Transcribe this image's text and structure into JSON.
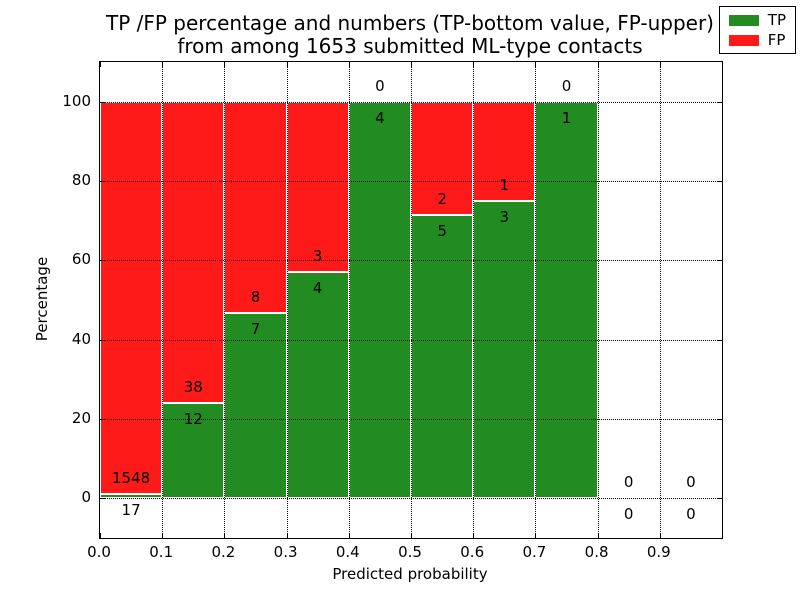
{
  "figure": {
    "title_line1": "TP /FP percentage and numbers (TP-bottom value, FP-upper)",
    "title_line2": "from among 1653 submitted ML-type contacts"
  },
  "chart_data": {
    "type": "bar",
    "stacked": true,
    "title": "TP /FP percentage and numbers (TP-bottom value, FP-upper) from among 1653 submitted ML-type contacts",
    "xlabel": "Predicted probability",
    "ylabel": "Percentage",
    "xlim": [
      0.0,
      1.0
    ],
    "ylim": [
      -10,
      110
    ],
    "grid": true,
    "total_contacts": 1653,
    "x_tick_values": [
      0.0,
      0.1,
      0.2,
      0.3,
      0.4,
      0.5,
      0.6,
      0.7,
      0.8,
      0.9
    ],
    "x_tick_labels": [
      "0.0",
      "0.1",
      "0.2",
      "0.3",
      "0.4",
      "0.5",
      "0.6",
      "0.7",
      "0.8",
      "0.9"
    ],
    "y_tick_values": [
      0,
      20,
      40,
      60,
      80,
      100
    ],
    "y_tick_labels": [
      "0",
      "20",
      "40",
      "60",
      "80",
      "100"
    ],
    "legend": {
      "position": "upper right",
      "entries": [
        {
          "label": "TP",
          "color": "#228b22"
        },
        {
          "label": "FP",
          "color": "#ff1a1a"
        }
      ]
    },
    "series_note": "Each bin stacks TP (green, bottom) and FP (red, top) as percent of bin total; numeric labels show raw counts (TP below boundary, FP above boundary).",
    "bins": [
      {
        "x0": 0.0,
        "x1": 0.1,
        "tp": 17,
        "fp": 1548,
        "tp_pct": 1.09,
        "fp_pct": 98.91
      },
      {
        "x0": 0.1,
        "x1": 0.2,
        "tp": 12,
        "fp": 38,
        "tp_pct": 24.0,
        "fp_pct": 76.0
      },
      {
        "x0": 0.2,
        "x1": 0.3,
        "tp": 7,
        "fp": 8,
        "tp_pct": 46.67,
        "fp_pct": 53.33
      },
      {
        "x0": 0.3,
        "x1": 0.4,
        "tp": 4,
        "fp": 3,
        "tp_pct": 57.14,
        "fp_pct": 42.86
      },
      {
        "x0": 0.4,
        "x1": 0.5,
        "tp": 4,
        "fp": 0,
        "tp_pct": 100.0,
        "fp_pct": 0.0
      },
      {
        "x0": 0.5,
        "x1": 0.6,
        "tp": 5,
        "fp": 2,
        "tp_pct": 71.43,
        "fp_pct": 28.57
      },
      {
        "x0": 0.6,
        "x1": 0.7,
        "tp": 3,
        "fp": 1,
        "tp_pct": 75.0,
        "fp_pct": 25.0
      },
      {
        "x0": 0.7,
        "x1": 0.8,
        "tp": 1,
        "fp": 0,
        "tp_pct": 100.0,
        "fp_pct": 0.0
      },
      {
        "x0": 0.8,
        "x1": 0.9,
        "tp": 0,
        "fp": 0,
        "tp_pct": 0.0,
        "fp_pct": 0.0
      },
      {
        "x0": 0.9,
        "x1": 1.0,
        "tp": 0,
        "fp": 0,
        "tp_pct": 0.0,
        "fp_pct": 0.0
      }
    ],
    "colors": {
      "tp": "#228b22",
      "fp": "#ff1a1a",
      "grid": "#000000",
      "bar_edge": "#ffffff",
      "background": "#ffffff",
      "text": "#000000"
    }
  }
}
